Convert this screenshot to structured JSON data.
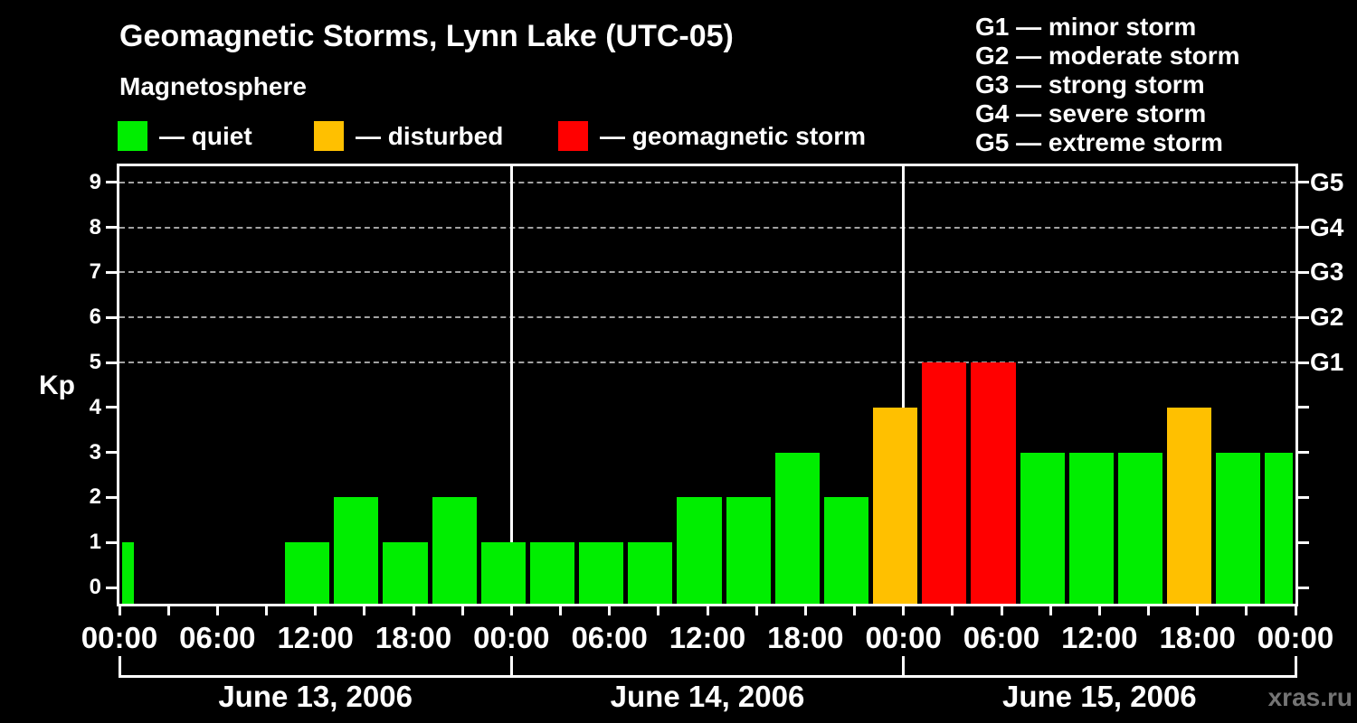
{
  "title": "Geomagnetic Storms, Lynn Lake (UTC-05)",
  "subtitle": "Magnetosphere",
  "watermark": "xras.ru",
  "colors": {
    "quiet": "#00ee00",
    "disturbed": "#ffc000",
    "storm": "#ff0000",
    "background": "#000000",
    "axis": "#ffffff",
    "grid": "#a2a2a2",
    "watermark": "#747474"
  },
  "legend": {
    "items": [
      {
        "key": "quiet",
        "label": "— quiet"
      },
      {
        "key": "disturbed",
        "label": "— disturbed"
      },
      {
        "key": "storm",
        "label": "— geomagnetic storm"
      }
    ]
  },
  "g_legend": {
    "items": [
      "G1 — minor storm",
      "G2 — moderate storm",
      "G3 — strong storm",
      "G4 — severe storm",
      "G5 — extreme storm"
    ]
  },
  "chart_data": {
    "type": "bar",
    "title": "Geomagnetic Storms, Lynn Lake (UTC-05)",
    "subtitle": "Magnetosphere",
    "ylabel": "Kp",
    "ylim": [
      0,
      9
    ],
    "y_ticks": [
      0,
      1,
      2,
      3,
      4,
      5,
      6,
      7,
      8,
      9
    ],
    "grid_kp_levels": [
      5,
      6,
      7,
      8,
      9
    ],
    "right_axis_labels": [
      {
        "kp": 5,
        "label": "G1"
      },
      {
        "kp": 6,
        "label": "G2"
      },
      {
        "kp": 7,
        "label": "G3"
      },
      {
        "kp": 8,
        "label": "G4"
      },
      {
        "kp": 9,
        "label": "G5"
      }
    ],
    "x_tick_labels": [
      "00:00",
      "06:00",
      "12:00",
      "18:00",
      "00:00",
      "06:00",
      "12:00",
      "18:00",
      "00:00",
      "06:00",
      "12:00",
      "18:00",
      "00:00"
    ],
    "x_tick_interval_hours": 3,
    "x_label_interval_hours": 6,
    "total_hours": 72,
    "days": [
      {
        "label": "June 13, 2006"
      },
      {
        "label": "June 14, 2006"
      },
      {
        "label": "June 15, 2006"
      }
    ],
    "thresholds": {
      "disturbed": 4,
      "storm": 5
    },
    "intervals": [
      {
        "start": 0,
        "end": 1,
        "kp": 1
      },
      {
        "start": 1,
        "end": 4,
        "kp": 0
      },
      {
        "start": 4,
        "end": 7,
        "kp": 0
      },
      {
        "start": 7,
        "end": 10,
        "kp": 0
      },
      {
        "start": 10,
        "end": 13,
        "kp": 1
      },
      {
        "start": 13,
        "end": 16,
        "kp": 2
      },
      {
        "start": 16,
        "end": 19,
        "kp": 1
      },
      {
        "start": 19,
        "end": 22,
        "kp": 2
      },
      {
        "start": 22,
        "end": 25,
        "kp": 1
      },
      {
        "start": 25,
        "end": 28,
        "kp": 1
      },
      {
        "start": 28,
        "end": 31,
        "kp": 1
      },
      {
        "start": 31,
        "end": 34,
        "kp": 1
      },
      {
        "start": 34,
        "end": 37,
        "kp": 2
      },
      {
        "start": 37,
        "end": 40,
        "kp": 2
      },
      {
        "start": 40,
        "end": 43,
        "kp": 3
      },
      {
        "start": 43,
        "end": 46,
        "kp": 2
      },
      {
        "start": 46,
        "end": 49,
        "kp": 4
      },
      {
        "start": 49,
        "end": 52,
        "kp": 5
      },
      {
        "start": 52,
        "end": 55,
        "kp": 5
      },
      {
        "start": 55,
        "end": 58,
        "kp": 3
      },
      {
        "start": 58,
        "end": 61,
        "kp": 3
      },
      {
        "start": 61,
        "end": 64,
        "kp": 3
      },
      {
        "start": 64,
        "end": 67,
        "kp": 4
      },
      {
        "start": 67,
        "end": 70,
        "kp": 3
      },
      {
        "start": 70,
        "end": 72,
        "kp": 3
      }
    ]
  }
}
